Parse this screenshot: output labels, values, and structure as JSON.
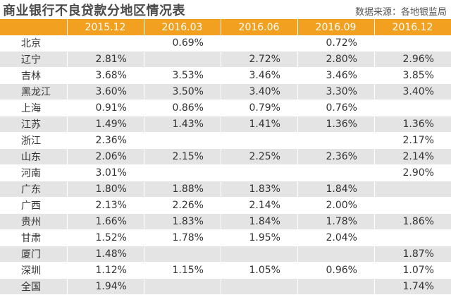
{
  "title": "商业银行不良贷款分地区情况表",
  "source": "数据来源：各地银监局",
  "columns": [
    "",
    "2015.12",
    "2016.03",
    "2016.06",
    "2016.09",
    "2016.12"
  ],
  "rows": [
    {
      "region": "北京",
      "values": [
        "",
        "0.69%",
        "",
        "0.72%",
        ""
      ]
    },
    {
      "region": "辽宁",
      "values": [
        "2.81%",
        "",
        "2.72%",
        "2.80%",
        "2.96%"
      ]
    },
    {
      "region": "吉林",
      "values": [
        "3.68%",
        "3.53%",
        "3.46%",
        "3.46%",
        "3.85%"
      ]
    },
    {
      "region": "黑龙江",
      "values": [
        "3.60%",
        "3.50%",
        "3.40%",
        "3.30%",
        "3.40%"
      ]
    },
    {
      "region": "上海",
      "values": [
        "0.91%",
        "0.86%",
        "0.79%",
        "0.76%",
        ""
      ]
    },
    {
      "region": "江苏",
      "values": [
        "1.49%",
        "1.43%",
        "1.41%",
        "1.36%",
        "1.36%"
      ]
    },
    {
      "region": "浙江",
      "values": [
        "2.36%",
        "",
        "",
        "",
        "2.17%"
      ]
    },
    {
      "region": "山东",
      "values": [
        "2.06%",
        "2.15%",
        "2.25%",
        "2.36%",
        "2.14%"
      ]
    },
    {
      "region": "河南",
      "values": [
        "3.01%",
        "",
        "",
        "",
        "2.90%"
      ]
    },
    {
      "region": "广东",
      "values": [
        "1.80%",
        "1.88%",
        "1.83%",
        "1.84%",
        ""
      ]
    },
    {
      "region": "广西",
      "values": [
        "2.13%",
        "2.26%",
        "2.14%",
        "2.00%",
        ""
      ]
    },
    {
      "region": "贵州",
      "values": [
        "1.66%",
        "1.83%",
        "1.84%",
        "1.78%",
        "1.86%"
      ]
    },
    {
      "region": "甘肃",
      "values": [
        "1.52%",
        "1.78%",
        "1.95%",
        "2.04%",
        ""
      ]
    },
    {
      "region": "厦门",
      "values": [
        "1.48%",
        "",
        "",
        "",
        "1.87%"
      ]
    },
    {
      "region": "深圳",
      "values": [
        "1.12%",
        "1.15%",
        "1.05%",
        "0.96%",
        "1.07%"
      ]
    },
    {
      "region": "全国",
      "values": [
        "1.94%",
        "",
        "",
        "",
        "1.74%"
      ]
    }
  ],
  "colors": {
    "header_bg": "#f2a01f",
    "stripe": "#e4e4e4"
  }
}
